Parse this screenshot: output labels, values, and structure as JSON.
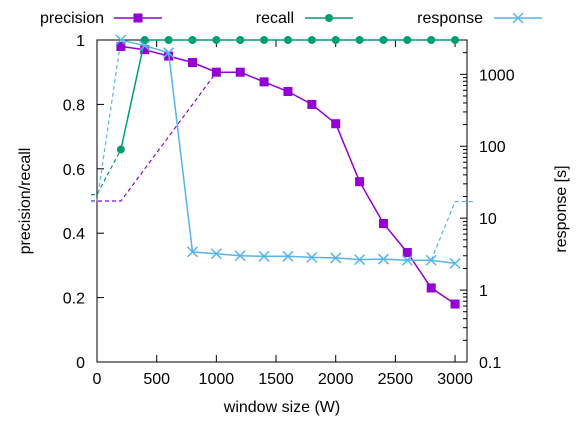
{
  "chart_data": {
    "type": "line",
    "title": "",
    "xlabel": "window size (W)",
    "ylabel_left": "precision/recall",
    "ylabel_right": "response [s]",
    "xlim": [
      0,
      3100
    ],
    "ylim_left": [
      0,
      1
    ],
    "ylim_right": [
      0.1,
      3000
    ],
    "y_right_scale": "log",
    "x_ticks": [
      0,
      500,
      1000,
      1500,
      2000,
      2500,
      3000
    ],
    "y_left_ticks": [
      0,
      0.2,
      0.4,
      0.6,
      0.8,
      1
    ],
    "y_right_ticks": [
      0.1,
      1,
      10,
      100,
      1000
    ],
    "grid": false,
    "legend_position": "top, outside plot",
    "series": [
      {
        "name": "precision",
        "axis": "left",
        "color": "#9400d3",
        "marker": "square",
        "x": [
          200,
          400,
          600,
          800,
          1000,
          1200,
          1400,
          1600,
          1800,
          2000,
          2200,
          2400,
          2600,
          2800,
          3000
        ],
        "values": [
          0.98,
          0.97,
          0.95,
          0.93,
          0.9,
          0.9,
          0.87,
          0.84,
          0.8,
          0.74,
          0.56,
          0.43,
          0.34,
          0.23,
          0.18
        ]
      },
      {
        "name": "recall",
        "axis": "left",
        "color": "#009e73",
        "marker": "circle",
        "x": [
          200,
          400,
          600,
          800,
          1000,
          1200,
          1400,
          1600,
          1800,
          2000,
          2200,
          2400,
          2600,
          2800,
          3000
        ],
        "values": [
          0.66,
          1,
          1,
          1,
          1,
          1,
          1,
          1,
          1,
          1,
          1,
          1,
          1,
          1,
          1
        ]
      },
      {
        "name": "response",
        "axis": "right",
        "color": "#56b4e9",
        "marker": "x",
        "x": [
          200,
          400,
          600,
          800,
          1000,
          1200,
          1400,
          1600,
          1800,
          2000,
          2200,
          2400,
          2600,
          2800,
          3000
        ],
        "values": [
          3000,
          2500,
          2000,
          3.4,
          3.2,
          3.0,
          2.95,
          2.95,
          2.85,
          2.8,
          2.65,
          2.7,
          2.6,
          2.6,
          2.35
        ]
      }
    ],
    "dashed_guides": [
      {
        "color": "#9400d3",
        "points": [
          [
            -50,
            0.5
          ],
          [
            200,
            0.5
          ],
          [
            1000,
            0.9
          ]
        ],
        "axis": "left"
      },
      {
        "color": "#009e73",
        "points": [
          [
            -50,
            0.52
          ],
          [
            0,
            0.52
          ],
          [
            200,
            0.66
          ]
        ],
        "axis": "left"
      },
      {
        "color": "#56b4e9",
        "points": [
          [
            -50,
            17
          ],
          [
            0,
            17
          ],
          [
            200,
            3000
          ]
        ],
        "axis": "right"
      },
      {
        "color": "#56b4e9",
        "points": [
          [
            2800,
            2.6
          ],
          [
            3000,
            17
          ],
          [
            3150,
            17
          ]
        ],
        "axis": "right"
      }
    ]
  }
}
